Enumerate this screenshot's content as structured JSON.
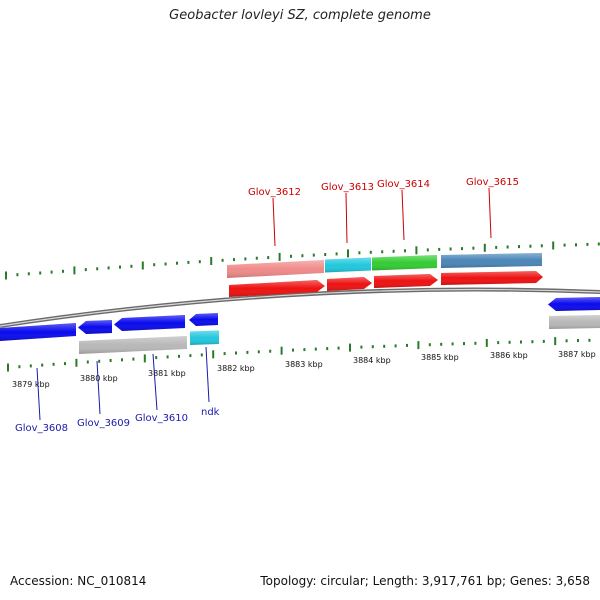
{
  "title": "Geobacter lovleyi SZ, complete genome",
  "footer": {
    "accession": "Accession: NC_010814",
    "summary": "Topology: circular; Length: 3,917,761 bp; Genes: 3,658"
  },
  "kbp_labels": [
    "3879 kbp",
    "3880 kbp",
    "3881 kbp",
    "3882 kbp",
    "3883 kbp",
    "3884 kbp",
    "3885 kbp",
    "3886 kbp",
    "3887 kbp"
  ],
  "top_genes": [
    {
      "label": "Glov_3612",
      "color": "#cc0000"
    },
    {
      "label": "Glov_3613",
      "color": "#cc0000"
    },
    {
      "label": "Glov_3614",
      "color": "#cc0000"
    },
    {
      "label": "Glov_3615",
      "color": "#cc0000"
    }
  ],
  "bottom_genes": [
    {
      "label": "Glov_3608",
      "color": "#1a1aaa"
    },
    {
      "label": "Glov_3609",
      "color": "#1a1aaa"
    },
    {
      "label": "Glov_3610",
      "color": "#1a1aaa"
    },
    {
      "label": "ndk",
      "color": "#1a1aaa"
    }
  ],
  "colors": {
    "forward_cds": "#ee1111",
    "reverse_cds": "#0a0aee",
    "salmon": "#f08a8a",
    "cyan": "#22c8dd",
    "green": "#33cc33",
    "steel": "#4a86b8",
    "gray_feature": "#b8b8b8",
    "tick": "#2a7a2a",
    "backbone": "#6a6a6a"
  }
}
